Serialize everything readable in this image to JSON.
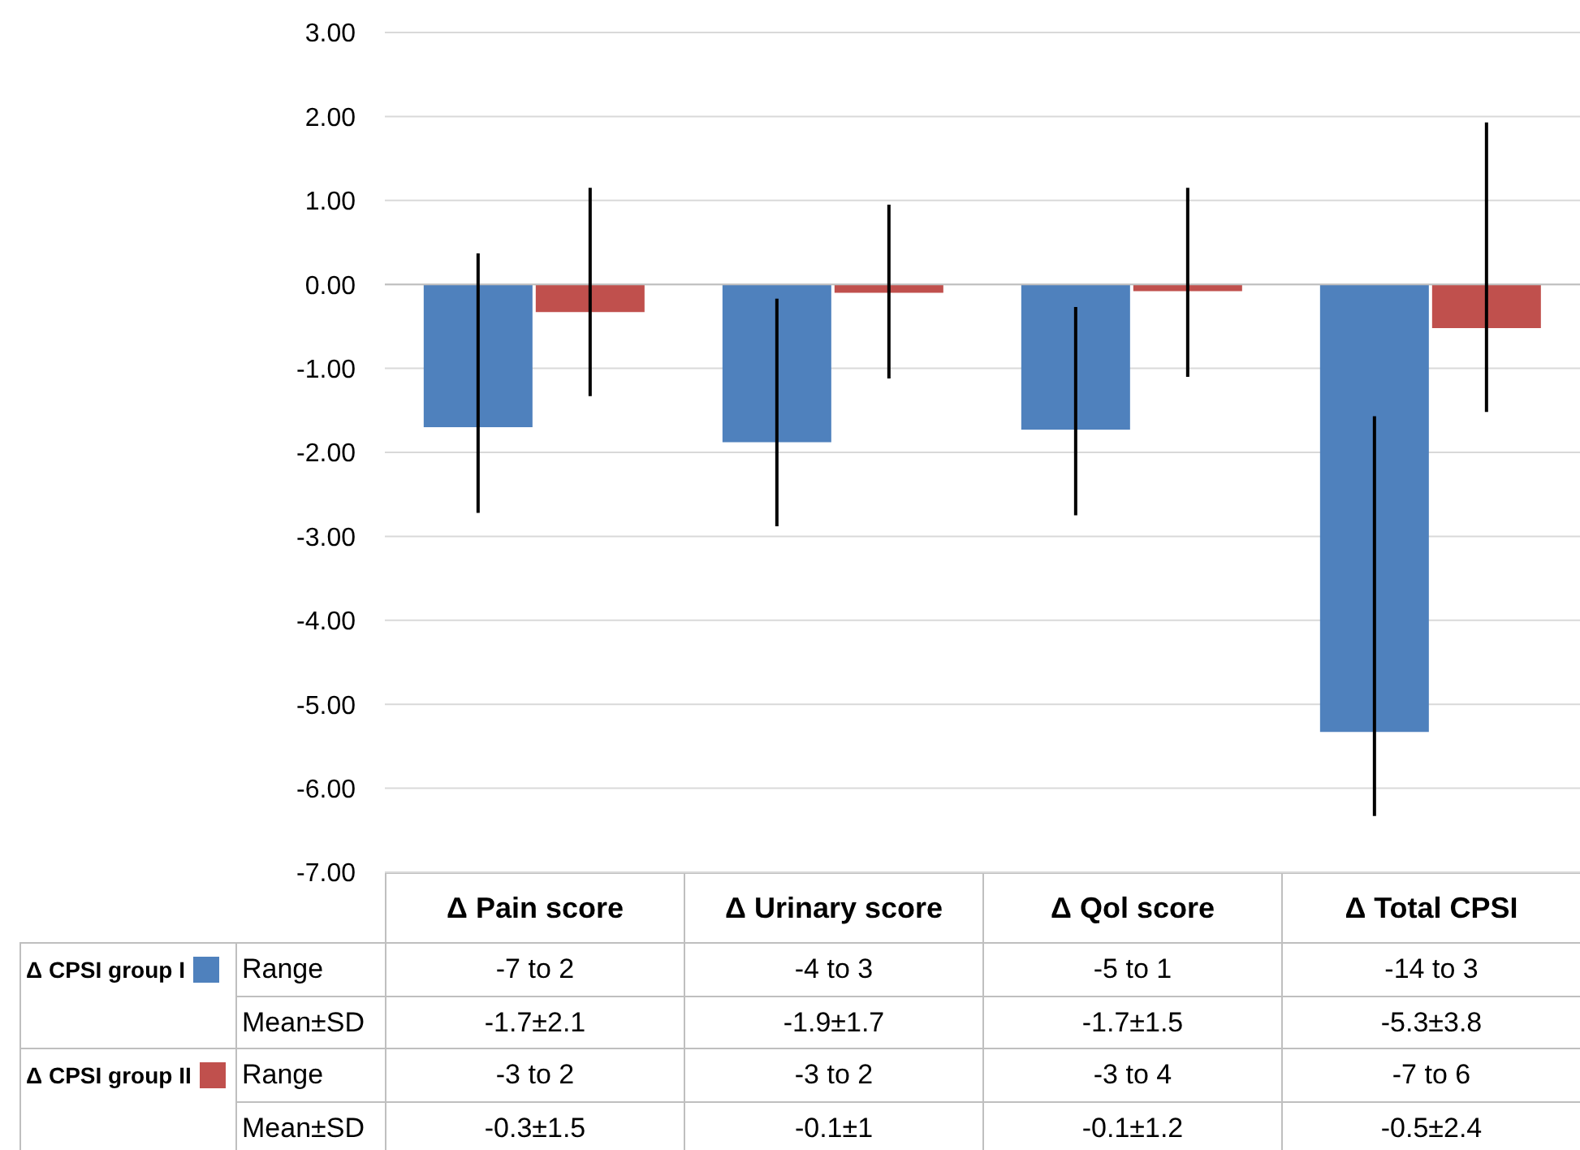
{
  "chart_data": {
    "type": "bar",
    "categories": [
      "Δ Pain score",
      "Δ Urinary score",
      "Δ Qol score",
      "Δ Total CPSI"
    ],
    "series": [
      {
        "name": "Δ CPSI group I",
        "color": "#4f81bd",
        "values": [
          -1.7,
          -1.88,
          -1.73,
          -5.33
        ],
        "errors": [
          [
            -2.72,
            0.37
          ],
          [
            -2.88,
            -0.17
          ],
          [
            -2.75,
            -0.27
          ],
          [
            -6.33,
            -1.57
          ]
        ],
        "value_labels": [
          "-1.7±2.1",
          "-1.9±1.7",
          "-1.7±1.5",
          "-5.3±3.8"
        ]
      },
      {
        "name": "Δ CPSI group II",
        "color": "#c0504d",
        "values": [
          -0.33,
          -0.1,
          -0.08,
          -0.52
        ],
        "errors": [
          [
            -1.33,
            1.15
          ],
          [
            -1.12,
            0.95
          ],
          [
            -1.1,
            1.15
          ],
          [
            -1.52,
            1.93
          ]
        ],
        "value_labels": [
          "-0.3±1.5",
          "-0.1±1",
          "-0.1±1.2",
          "-0.5±2.4"
        ]
      }
    ],
    "annotations": [
      "Range",
      "Mean±SD",
      "-7 to 2",
      "-4 to 3",
      "-5 to 1",
      "-14 to 3",
      "-3 to 2",
      "-3 to 2",
      "-3 to 4",
      "-7 to 6"
    ],
    "ylim": [
      -7,
      3
    ],
    "yticks": [
      {
        "value": 3,
        "label": "3.00"
      },
      {
        "value": 2,
        "label": "2.00"
      },
      {
        "value": 1,
        "label": "1.00"
      },
      {
        "value": 0,
        "label": "0.00"
      },
      {
        "value": -1,
        "label": "-1.00"
      },
      {
        "value": -2,
        "label": "-2.00"
      },
      {
        "value": -3,
        "label": "-3.00"
      },
      {
        "value": -4,
        "label": "-4.00"
      },
      {
        "value": -5,
        "label": "-5.00"
      },
      {
        "value": -6,
        "label": "-6.00"
      },
      {
        "value": -7,
        "label": "-7.00"
      }
    ],
    "grid": "y",
    "legend": "bottom left"
  }
}
